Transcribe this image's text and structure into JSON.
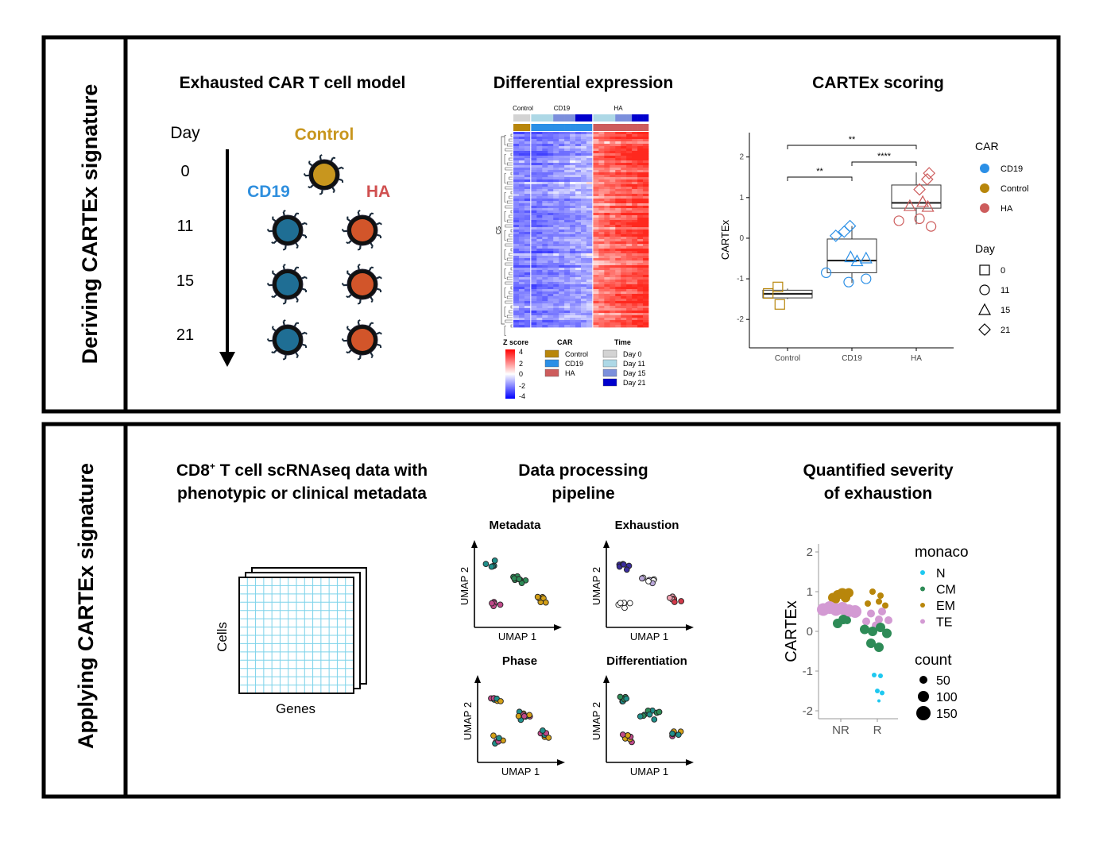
{
  "top_panel": {
    "side_label": "Deriving CARTEx signature",
    "model": {
      "title": "Exhausted CAR T cell model",
      "day_header": "Day",
      "days": [
        "0",
        "11",
        "15",
        "21"
      ],
      "control_label": "Control",
      "cd19_label": "CD19",
      "ha_label": "HA",
      "colors": {
        "control": "#c8961e",
        "cd19": "#1f6e94",
        "ha": "#d2552a",
        "cd19_text": "#2f8fde",
        "ha_text": "#d05050"
      }
    },
    "heatmap": {
      "title": "Differential expression",
      "top_group_labels": [
        "Control",
        "CD19",
        "HA"
      ],
      "row_label": "C5",
      "legend_zscore_title": "Z score",
      "zscore_ticks": [
        "4",
        "2",
        "0",
        "-2",
        "-4"
      ],
      "legend_car_title": "CAR",
      "car_entries": [
        {
          "label": "Control",
          "color": "#b8860b"
        },
        {
          "label": "CD19",
          "color": "#2b8fe6"
        },
        {
          "label": "HA",
          "color": "#cd5c5c"
        }
      ],
      "legend_time_title": "Time",
      "time_entries": [
        {
          "label": "Day 0",
          "color": "#d3d3d3"
        },
        {
          "label": "Day 11",
          "color": "#add8e6"
        },
        {
          "label": "Day 15",
          "color": "#7b8fdc"
        },
        {
          "label": "Day 21",
          "color": "#0000cd"
        }
      ]
    },
    "scoring": {
      "title": "CARTEx scoring",
      "chart_data": {
        "type": "box",
        "categories": [
          "Control",
          "CD19",
          "HA"
        ],
        "ylabel": "CARTEx",
        "ylim": [
          -2.7,
          2.6
        ],
        "yticks": [
          "2",
          "1",
          "0",
          "-1",
          "-2"
        ],
        "boxes": [
          {
            "category": "Control",
            "q1": -1.47,
            "median": -1.37,
            "q3": -1.28,
            "lo": -1.5,
            "hi": -1.24,
            "color": "#b8860b"
          },
          {
            "category": "CD19",
            "q1": -0.85,
            "median": -0.55,
            "q3": -0.02,
            "lo": -1.1,
            "hi": 0.3,
            "color": "#2b8fe6"
          },
          {
            "category": "HA",
            "q1": 0.74,
            "median": 0.87,
            "q3": 1.31,
            "lo": 0.34,
            "hi": 1.62,
            "color": "#cd5c5c"
          }
        ],
        "points": [
          {
            "category": "Control",
            "day": "0",
            "y": -1.2,
            "dx": -0.15
          },
          {
            "category": "Control",
            "day": "0",
            "y": -1.36,
            "dx": -0.3
          },
          {
            "category": "Control",
            "day": "0",
            "y": -1.63,
            "dx": -0.12
          },
          {
            "category": "CD19",
            "day": "11",
            "y": -0.85,
            "dx": -0.4
          },
          {
            "category": "CD19",
            "day": "11",
            "y": -1.08,
            "dx": -0.05
          },
          {
            "category": "CD19",
            "day": "11",
            "y": -1.0,
            "dx": 0.22
          },
          {
            "category": "CD19",
            "day": "15",
            "y": -0.56,
            "dx": 0.08
          },
          {
            "category": "CD19",
            "day": "15",
            "y": -0.49,
            "dx": 0.22
          },
          {
            "category": "CD19",
            "day": "15",
            "y": -0.46,
            "dx": -0.02
          },
          {
            "category": "CD19",
            "day": "21",
            "y": 0.06,
            "dx": -0.25
          },
          {
            "category": "CD19",
            "day": "21",
            "y": 0.16,
            "dx": -0.12
          },
          {
            "category": "CD19",
            "day": "21",
            "y": 0.3,
            "dx": -0.03
          },
          {
            "category": "HA",
            "day": "11",
            "y": 0.43,
            "dx": -0.27
          },
          {
            "category": "HA",
            "day": "11",
            "y": 0.29,
            "dx": 0.23
          },
          {
            "category": "HA",
            "day": "11",
            "y": 0.48,
            "dx": 0.05
          },
          {
            "category": "HA",
            "day": "15",
            "y": 0.8,
            "dx": -0.1
          },
          {
            "category": "HA",
            "day": "15",
            "y": 0.9,
            "dx": 0.1
          },
          {
            "category": "HA",
            "day": "15",
            "y": 0.78,
            "dx": 0.18
          },
          {
            "category": "HA",
            "day": "21",
            "y": 1.2,
            "dx": 0.05
          },
          {
            "category": "HA",
            "day": "21",
            "y": 1.45,
            "dx": 0.17
          },
          {
            "category": "HA",
            "day": "21",
            "y": 1.6,
            "dx": 0.2
          }
        ],
        "significance": [
          {
            "from": "Control",
            "to": "CD19",
            "label": "**"
          },
          {
            "from": "CD19",
            "to": "HA",
            "label": "****"
          },
          {
            "from": "Control",
            "to": "HA",
            "label": "**"
          }
        ],
        "legend_car_title": "CAR",
        "legend_car": [
          {
            "label": "CD19",
            "color": "#2b8fe6"
          },
          {
            "label": "Control",
            "color": "#b8860b"
          },
          {
            "label": "HA",
            "color": "#cd5c5c"
          }
        ],
        "legend_day_title": "Day",
        "legend_day": [
          {
            "label": "0",
            "shape": "square"
          },
          {
            "label": "11",
            "shape": "circle"
          },
          {
            "label": "15",
            "shape": "triangle"
          },
          {
            "label": "21",
            "shape": "diamond"
          }
        ]
      }
    }
  },
  "bottom_panel": {
    "side_label": "Applying CARTEx signature",
    "data": {
      "title_pre": "CD8",
      "title_sup": "+",
      "title_post": " T cell scRNAseq data with",
      "title_line2": "phenotypic or clinical metadata",
      "y_label": "Cells",
      "x_label": "Genes"
    },
    "pipeline": {
      "title_line1": "Data processing",
      "title_line2": "pipeline",
      "panels": [
        {
          "title": "Metadata",
          "xlabel": "UMAP 1",
          "ylabel": "UMAP 2"
        },
        {
          "title": "Exhaustion",
          "xlabel": "UMAP 1",
          "ylabel": "UMAP 2"
        },
        {
          "title": "Phase",
          "xlabel": "UMAP 1",
          "ylabel": "UMAP 2"
        },
        {
          "title": "Differentiation",
          "xlabel": "UMAP 1",
          "ylabel": "UMAP 2"
        }
      ]
    },
    "severity": {
      "title_line1": "Quantified severity",
      "title_line2": "of exhaustion",
      "chart_data": {
        "type": "scatter",
        "categories": [
          "NR",
          "R"
        ],
        "ylabel": "CARTEx",
        "ylim": [
          -2.2,
          2.2
        ],
        "yticks": [
          "2",
          "1",
          "0",
          "-1",
          "-2"
        ],
        "legend_color_title": "monaco",
        "legend_color": [
          {
            "label": "N",
            "color": "#1ec8f0"
          },
          {
            "label": "CM",
            "color": "#2e8b57"
          },
          {
            "label": "EM",
            "color": "#b8860b"
          },
          {
            "label": "TE",
            "color": "#d39ad3"
          }
        ],
        "legend_size_title": "count",
        "legend_size": [
          "50",
          "100",
          "150"
        ],
        "points": [
          {
            "cat": "NR",
            "dx": -0.25,
            "y": 0.85,
            "g": "EM",
            "s": 6
          },
          {
            "cat": "NR",
            "dx": -0.1,
            "y": 0.92,
            "g": "EM",
            "s": 6
          },
          {
            "cat": "NR",
            "dx": 0.05,
            "y": 0.95,
            "g": "EM",
            "s": 7
          },
          {
            "cat": "NR",
            "dx": 0.15,
            "y": 0.85,
            "g": "EM",
            "s": 6
          },
          {
            "cat": "NR",
            "dx": 0.25,
            "y": 0.97,
            "g": "EM",
            "s": 6
          },
          {
            "cat": "NR",
            "dx": -0.15,
            "y": 0.8,
            "g": "EM",
            "s": 5
          },
          {
            "cat": "NR",
            "dx": -0.55,
            "y": 0.55,
            "g": "TE",
            "s": 8
          },
          {
            "cat": "NR",
            "dx": -0.35,
            "y": 0.6,
            "g": "TE",
            "s": 8
          },
          {
            "cat": "NR",
            "dx": -0.15,
            "y": 0.55,
            "g": "TE",
            "s": 8
          },
          {
            "cat": "NR",
            "dx": 0.05,
            "y": 0.58,
            "g": "TE",
            "s": 8
          },
          {
            "cat": "NR",
            "dx": 0.25,
            "y": 0.52,
            "g": "TE",
            "s": 8
          },
          {
            "cat": "NR",
            "dx": 0.45,
            "y": 0.5,
            "g": "TE",
            "s": 8
          },
          {
            "cat": "NR",
            "dx": -0.1,
            "y": 0.2,
            "g": "CM",
            "s": 6
          },
          {
            "cat": "NR",
            "dx": 0.08,
            "y": 0.3,
            "g": "CM",
            "s": 6
          },
          {
            "cat": "NR",
            "dx": 0.2,
            "y": 0.28,
            "g": "CM",
            "s": 5
          },
          {
            "cat": "R",
            "dx": -0.15,
            "y": 1.0,
            "g": "EM",
            "s": 4
          },
          {
            "cat": "R",
            "dx": 0.1,
            "y": 0.9,
            "g": "EM",
            "s": 4
          },
          {
            "cat": "R",
            "dx": -0.3,
            "y": 0.7,
            "g": "EM",
            "s": 4
          },
          {
            "cat": "R",
            "dx": 0.05,
            "y": 0.75,
            "g": "EM",
            "s": 4
          },
          {
            "cat": "R",
            "dx": 0.25,
            "y": 0.65,
            "g": "EM",
            "s": 4
          },
          {
            "cat": "R",
            "dx": -0.2,
            "y": 0.45,
            "g": "TE",
            "s": 5
          },
          {
            "cat": "R",
            "dx": 0.15,
            "y": 0.5,
            "g": "TE",
            "s": 5
          },
          {
            "cat": "R",
            "dx": -0.35,
            "y": 0.25,
            "g": "TE",
            "s": 5
          },
          {
            "cat": "R",
            "dx": 0.05,
            "y": 0.3,
            "g": "TE",
            "s": 5
          },
          {
            "cat": "R",
            "dx": 0.35,
            "y": 0.28,
            "g": "TE",
            "s": 5
          },
          {
            "cat": "R",
            "dx": -0.05,
            "y": 0.15,
            "g": "TE",
            "s": 5
          },
          {
            "cat": "R",
            "dx": -0.4,
            "y": 0.05,
            "g": "CM",
            "s": 6
          },
          {
            "cat": "R",
            "dx": -0.15,
            "y": 0.0,
            "g": "CM",
            "s": 6
          },
          {
            "cat": "R",
            "dx": 0.1,
            "y": 0.1,
            "g": "CM",
            "s": 6
          },
          {
            "cat": "R",
            "dx": 0.3,
            "y": -0.05,
            "g": "CM",
            "s": 6
          },
          {
            "cat": "R",
            "dx": -0.2,
            "y": -0.3,
            "g": "CM",
            "s": 6
          },
          {
            "cat": "R",
            "dx": 0.05,
            "y": -0.4,
            "g": "CM",
            "s": 6
          },
          {
            "cat": "R",
            "dx": -0.1,
            "y": -1.1,
            "g": "N",
            "s": 3
          },
          {
            "cat": "R",
            "dx": 0.1,
            "y": -1.12,
            "g": "N",
            "s": 3
          },
          {
            "cat": "R",
            "dx": 0.0,
            "y": -1.5,
            "g": "N",
            "s": 3
          },
          {
            "cat": "R",
            "dx": 0.15,
            "y": -1.55,
            "g": "N",
            "s": 3
          },
          {
            "cat": "R",
            "dx": 0.05,
            "y": -1.75,
            "g": "N",
            "s": 2
          }
        ]
      }
    }
  }
}
